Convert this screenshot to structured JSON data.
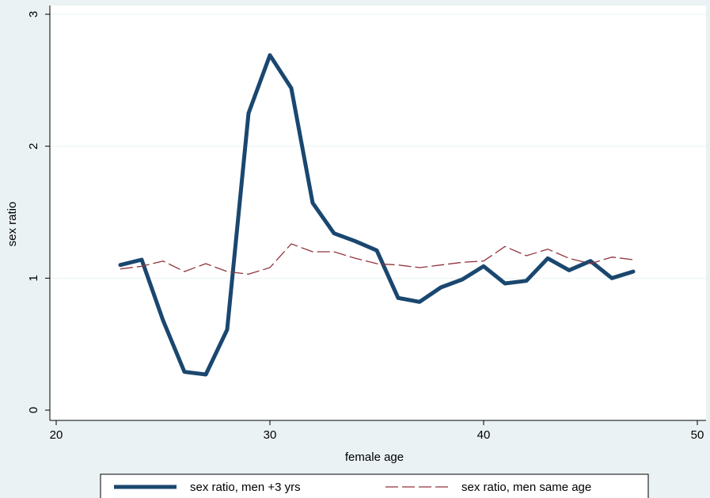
{
  "chart_data": {
    "type": "line",
    "title": "",
    "xlabel": "female age",
    "ylabel": "sex ratio",
    "xlim": [
      20,
      50
    ],
    "ylim": [
      0,
      3
    ],
    "xticks": [
      "20",
      "30",
      "40",
      "50"
    ],
    "yticks": [
      "0",
      "1",
      "2",
      "3"
    ],
    "grid": true,
    "legend_position": "bottom",
    "series": [
      {
        "name": "sex ratio, men +3 yrs",
        "color": "#1a476f",
        "style": "solid-thick",
        "x": [
          23,
          24,
          25,
          26,
          27,
          28,
          29,
          30,
          31,
          32,
          33,
          34,
          35,
          36,
          37,
          38,
          39,
          40,
          41,
          42,
          43,
          44,
          45,
          46,
          47
        ],
        "y": [
          1.1,
          1.14,
          0.68,
          0.29,
          0.27,
          0.61,
          2.25,
          2.69,
          2.44,
          1.57,
          1.34,
          1.28,
          1.21,
          0.85,
          0.82,
          0.93,
          0.99,
          1.09,
          0.96,
          0.98,
          1.15,
          1.06,
          1.13,
          1.0,
          1.05
        ]
      },
      {
        "name": "sex ratio, men same age",
        "color": "#90353b",
        "style": "dashed-thin",
        "x": [
          23,
          24,
          25,
          26,
          27,
          28,
          29,
          30,
          31,
          32,
          33,
          34,
          35,
          36,
          37,
          38,
          39,
          40,
          41,
          42,
          43,
          44,
          45,
          46,
          47
        ],
        "y": [
          1.07,
          1.09,
          1.13,
          1.05,
          1.11,
          1.05,
          1.03,
          1.08,
          1.26,
          1.2,
          1.2,
          1.15,
          1.11,
          1.1,
          1.08,
          1.1,
          1.12,
          1.13,
          1.24,
          1.17,
          1.22,
          1.15,
          1.11,
          1.16,
          1.14
        ]
      }
    ]
  }
}
